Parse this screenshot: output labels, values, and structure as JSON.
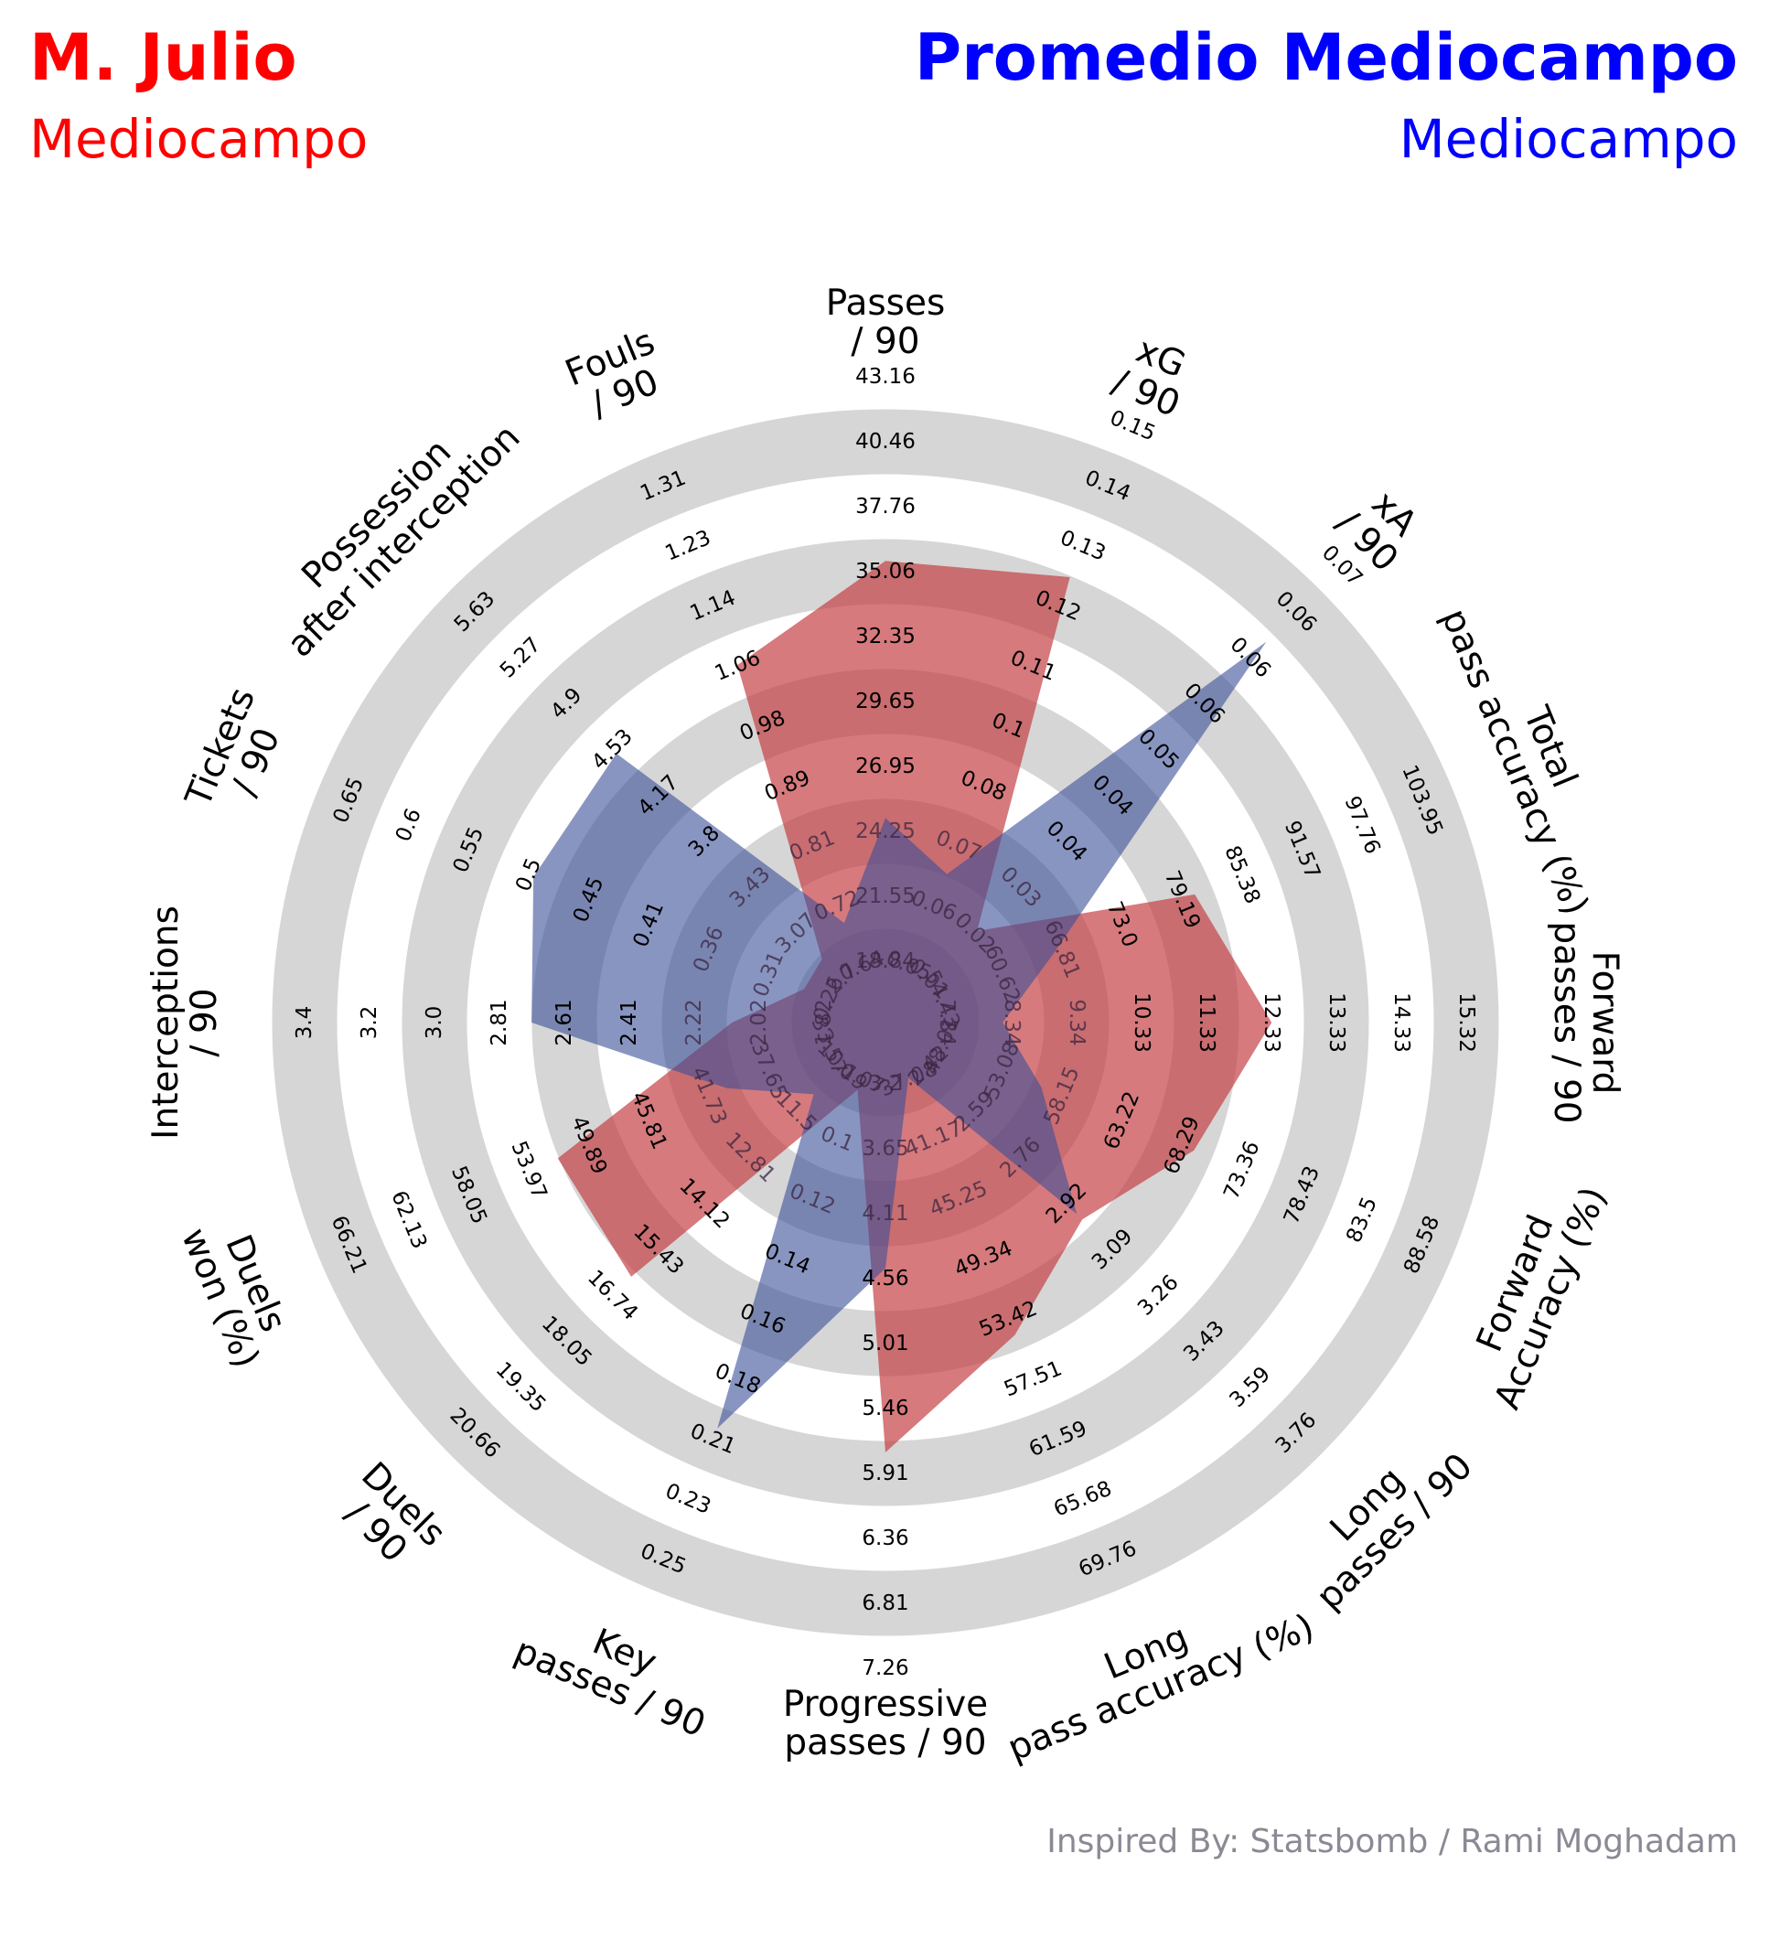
{
  "header": {
    "player_name": "M. Julio",
    "player_position": "Mediocampo",
    "comparison_name": "Promedio Mediocampo",
    "comparison_position": "Mediocampo"
  },
  "credit": "Inspired By: Statsbomb / Rami Moghadam",
  "colors": {
    "player": "#c23b3f",
    "comparison": "#3a4f97",
    "rings": "#d6d6d6",
    "player_title": "#ff0000",
    "comparison_title": "#0000ff",
    "credit": "#8a8a95"
  },
  "chart_data": {
    "type": "radar",
    "params": [
      {
        "label": "Passes\n/ 90",
        "ticks": [
          "18.84",
          "21.55",
          "24.25",
          "26.95",
          "29.65",
          "32.35",
          "35.06",
          "37.76",
          "40.46",
          "43.16"
        ]
      },
      {
        "label": "xG\n/ 90",
        "ticks": [
          "0.05",
          "0.06",
          "0.07",
          "0.08",
          "0.1",
          "0.11",
          "0.12",
          "0.13",
          "0.14",
          "0.15"
        ]
      },
      {
        "label": "xA\n/ 90",
        "ticks": [
          "0.01",
          "0.02",
          "0.03",
          "0.04",
          "0.04",
          "0.05",
          "0.06",
          "0.06",
          "0.06",
          "0.07"
        ]
      },
      {
        "label": "Total\npass accuracy (%)",
        "ticks": [
          "54.43",
          "60.62",
          "66.81",
          "73.0",
          "79.19",
          "85.38",
          "91.57",
          "97.76",
          "103.95",
          ""
        ]
      },
      {
        "label": "Forward\npasses / 90",
        "ticks": [
          "7.34",
          "8.34",
          "9.34",
          "10.33",
          "11.33",
          "12.33",
          "13.33",
          "14.33",
          "15.32",
          ""
        ]
      },
      {
        "label": "Forward\nAccuracy (%)",
        "ticks": [
          "48.01",
          "53.08",
          "58.15",
          "63.22",
          "68.29",
          "73.36",
          "78.43",
          "83.5",
          "88.58",
          ""
        ]
      },
      {
        "label": "Long\npasses / 90",
        "ticks": [
          "2.42",
          "2.59",
          "2.76",
          "2.92",
          "3.09",
          "3.26",
          "3.43",
          "3.59",
          "3.76",
          ""
        ]
      },
      {
        "label": "Long\npass accuracy (%)",
        "ticks": [
          "37.08",
          "41.17",
          "45.25",
          "49.34",
          "53.42",
          "57.51",
          "61.59",
          "65.68",
          "69.76",
          ""
        ]
      },
      {
        "label": "Progressive\npasses / 90",
        "ticks": [
          "3.2",
          "3.65",
          "4.11",
          "4.56",
          "5.01",
          "5.46",
          "5.91",
          "6.36",
          "6.81",
          "7.26"
        ]
      },
      {
        "label": "Key\npasses / 90",
        "ticks": [
          "0.07",
          "0.1",
          "0.12",
          "0.14",
          "0.16",
          "0.18",
          "0.21",
          "0.23",
          "0.25",
          ""
        ]
      },
      {
        "label": "Duels\n/ 90",
        "ticks": [
          "10.19",
          "11.5",
          "12.81",
          "14.12",
          "15.43",
          "16.74",
          "18.05",
          "19.35",
          "20.66",
          ""
        ]
      },
      {
        "label": "Duels\nwon (%)",
        "ticks": [
          "33.57",
          "37.65",
          "41.73",
          "45.81",
          "49.89",
          "53.97",
          "58.05",
          "62.13",
          "66.21",
          ""
        ]
      },
      {
        "label": "Interceptions\n/ 90",
        "ticks": [
          "1.82",
          "2.02",
          "2.22",
          "2.41",
          "2.61",
          "2.81",
          "3.0",
          "3.2",
          "3.4",
          ""
        ]
      },
      {
        "label": "Tickets\n/ 90",
        "ticks": [
          "0.26",
          "0.31",
          "0.36",
          "0.41",
          "0.45",
          "0.5",
          "0.55",
          "0.6",
          "0.65",
          ""
        ]
      },
      {
        "label": "Possession\nafter interception",
        "ticks": [
          "2.7",
          "3.07",
          "3.43",
          "3.8",
          "4.17",
          "4.53",
          "4.9",
          "5.27",
          "5.63",
          ""
        ]
      },
      {
        "label": "Fouls\n/ 90",
        "ticks": [
          "0.64",
          "0.72",
          "0.81",
          "0.89",
          "0.98",
          "1.06",
          "1.14",
          "1.23",
          "1.31",
          ""
        ]
      }
    ],
    "series": [
      {
        "name": "M. Julio",
        "values": [
          35.5,
          0.122,
          0.017,
          80.5,
          12.33,
          69.3,
          2.98,
          54.5,
          5.76,
          0.074,
          16.2,
          52.0,
          2.1,
          0.28,
          2.86,
          1.06
        ]
      },
      {
        "name": "Promedio Mediocampo",
        "values": [
          24.8,
          0.067,
          0.059,
          66.0,
          8.2,
          56.4,
          2.96,
          37.0,
          4.48,
          0.201,
          11.0,
          40.5,
          2.71,
          0.5,
          4.5,
          0.7
        ]
      }
    ]
  }
}
